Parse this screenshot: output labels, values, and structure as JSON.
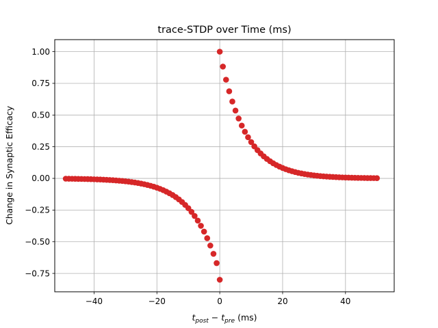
{
  "chart_data": {
    "type": "scatter",
    "title": "trace-STDP over Time (ms)",
    "xlabel": {
      "t1": "t",
      "sub1": "post",
      "minus": " − ",
      "t2": "t",
      "sub2": "pre",
      "units": " (ms)"
    },
    "ylabel": "Change in Synaptic Efficacy",
    "xlim": [
      -52.5,
      55.5
    ],
    "ylim": [
      -0.895,
      1.095
    ],
    "xticks": [
      -40,
      -20,
      0,
      20,
      40
    ],
    "xtick_labels": [
      "−40",
      "−20",
      "0",
      "20",
      "40"
    ],
    "yticks": [
      -0.75,
      -0.5,
      -0.25,
      0.0,
      0.25,
      0.5,
      0.75,
      1.0
    ],
    "ytick_labels": [
      "−0.75",
      "−0.50",
      "−0.25",
      "0.00",
      "0.25",
      "0.50",
      "0.75",
      "1.00"
    ],
    "grid": true,
    "marker_color": "#d62728",
    "series": [
      {
        "x": [
          -49,
          -48,
          -47,
          -46,
          -45,
          -44,
          -43,
          -42,
          -41,
          -40,
          -39,
          -38,
          -37,
          -36,
          -35,
          -34,
          -33,
          -32,
          -31,
          -30,
          -29,
          -28,
          -27,
          -26,
          -25,
          -24,
          -23,
          -22,
          -21,
          -20,
          -19,
          -18,
          -17,
          -16,
          -15,
          -14,
          -13,
          -12,
          -11,
          -10,
          -9,
          -8,
          -7,
          -6,
          -5,
          -4,
          -3,
          -2,
          -1,
          0,
          0,
          1,
          2,
          3,
          4,
          5,
          6,
          7,
          8,
          9,
          10,
          11,
          12,
          13,
          14,
          15,
          16,
          17,
          18,
          19,
          20,
          21,
          22,
          23,
          24,
          25,
          26,
          27,
          28,
          29,
          30,
          31,
          32,
          33,
          34,
          35,
          36,
          37,
          38,
          39,
          40,
          41,
          42,
          43,
          44,
          45,
          46,
          47,
          48,
          49,
          50
        ],
        "y": [
          -0.0025,
          -0.0028,
          -0.0032,
          -0.0036,
          -0.004,
          -0.0045,
          -0.0051,
          -0.0057,
          -0.0064,
          -0.0072,
          -0.0081,
          -0.0091,
          -0.0102,
          -0.0115,
          -0.0129,
          -0.0145,
          -0.0163,
          -0.0183,
          -0.0205,
          -0.023,
          -0.0259,
          -0.0291,
          -0.0327,
          -0.0367,
          -0.0412,
          -0.0463,
          -0.052,
          -0.0584,
          -0.0656,
          -0.0737,
          -0.0827,
          -0.0929,
          -0.1044,
          -0.1172,
          -0.1316,
          -0.1478,
          -0.166,
          -0.1865,
          -0.2094,
          -0.2352,
          -0.2642,
          -0.2967,
          -0.3332,
          -0.3743,
          -0.4203,
          -0.4721,
          -0.5302,
          -0.5955,
          -0.6688,
          -0.8,
          1.0,
          0.8825,
          0.7788,
          0.6873,
          0.6065,
          0.5353,
          0.4724,
          0.4169,
          0.3679,
          0.3247,
          0.2865,
          0.2528,
          0.2231,
          0.1969,
          0.1738,
          0.1534,
          0.1353,
          0.1194,
          0.1054,
          0.093,
          0.0821,
          0.0724,
          0.0639,
          0.0564,
          0.0498,
          0.0439,
          0.0388,
          0.0342,
          0.0302,
          0.0267,
          0.0235,
          0.0208,
          0.0183,
          0.0162,
          0.0143,
          0.0126,
          0.0111,
          0.0098,
          0.0087,
          0.0076,
          0.0067,
          0.0059,
          0.0052,
          0.0046,
          0.0041,
          0.0036,
          0.0032,
          0.0028,
          0.0025,
          0.0022,
          0.0019
        ]
      }
    ]
  }
}
